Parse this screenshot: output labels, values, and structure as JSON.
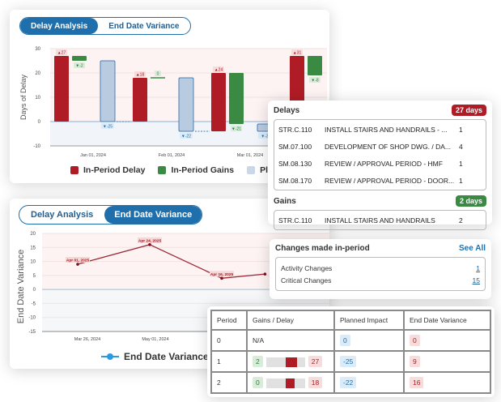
{
  "delay_card": {
    "toggle": {
      "options": [
        "Delay Analysis",
        "End Date Variance"
      ],
      "active": "Delay Analysis"
    },
    "chart_data": {
      "type": "bar",
      "subtype": "waterfall",
      "ylabel": "Days of Delay",
      "ylim": [
        -10,
        30
      ],
      "yticks": [
        "30",
        "20",
        "10",
        "0",
        "-10"
      ],
      "xticks": [
        "Jan 01, 2024",
        "Feb 01, 2024",
        "Mar 01, 2024"
      ],
      "periods": [
        {
          "delay": 27,
          "delay_label": "▲27",
          "gains": -2,
          "gains_label": "▼-2",
          "planned": -25,
          "planned_label": "▼-25",
          "end": 0
        },
        {
          "delay": 18,
          "delay_label": "▲18",
          "gains": 0,
          "gains_label": "0",
          "planned": -22,
          "planned_label": "▼-22",
          "end": -4
        },
        {
          "delay": 24,
          "delay_label": "▲24",
          "gains": -21,
          "gains_label": "▼-21",
          "planned": -3,
          "planned_label": "▼-3",
          "end": -4
        },
        {
          "delay": 31,
          "delay_label": "▲31",
          "gains": -8,
          "gains_label": "▼-8",
          "planned": -8,
          "planned_label": "",
          "end": 19
        }
      ],
      "legend": [
        "In-Period Delay",
        "In-Period Gains",
        "Planned Impact"
      ],
      "colors": {
        "delay": "#b01c26",
        "gains": "#3a8a44",
        "planned": "#b9cbe0",
        "planned_border": "#4a7fb5"
      }
    },
    "legend_labels": [
      "In-Period Delay",
      "In-Period Gains",
      "Planned I"
    ]
  },
  "details": {
    "delays": {
      "title": "Delays",
      "badge": "27 days",
      "rows": [
        {
          "code": "STR.C.110",
          "desc": "INSTALL STAIRS AND HANDRAILS - ...",
          "days": "1"
        },
        {
          "code": "SM.07.100",
          "desc": "DEVELOPMENT OF SHOP DWG. / DA...",
          "days": "4"
        },
        {
          "code": "SM.08.130",
          "desc": "REVIEW / APPROVAL PERIOD - HMF",
          "days": "1"
        },
        {
          "code": "SM.08.170",
          "desc": "REVIEW / APPROVAL PERIOD - DOOR...",
          "days": "1"
        }
      ]
    },
    "gains": {
      "title": "Gains",
      "badge": "2 days",
      "rows": [
        {
          "code": "STR.C.110",
          "desc": "INSTALL STAIRS AND HANDRAILS",
          "days": "2"
        }
      ]
    }
  },
  "edv_card": {
    "toggle": {
      "options": [
        "Delay Analysis",
        "End Date Variance"
      ],
      "active": "End Date Variance"
    },
    "chart_data": {
      "type": "line",
      "ylabel": "End Date Variance",
      "ylim": [
        -15,
        20
      ],
      "yticks": [
        "20",
        "15",
        "10",
        "5",
        "0",
        "-5",
        "-10",
        "-15"
      ],
      "xticks": [
        "Mar 26, 2024",
        "May 01, 2024"
      ],
      "points": [
        {
          "x": 0.0,
          "y": 9,
          "label": "Apr 01, 2025"
        },
        {
          "x": 1.0,
          "y": 16,
          "label": "Apr 24, 2025"
        },
        {
          "x": 2.0,
          "y": 4,
          "label": "Apr 16, 2025"
        },
        {
          "x": 2.6,
          "y": 5.5,
          "label": ""
        }
      ],
      "legend": [
        "End Date Variance"
      ],
      "line_color": "#9c2a36",
      "legend_color": "#2a9be0"
    }
  },
  "changes": {
    "title": "Changes made in-period",
    "see_all": "See All",
    "rows": [
      {
        "label": "Activity Changes",
        "value": "1"
      },
      {
        "label": "Critical Changes",
        "value": "15"
      }
    ]
  },
  "period_table": {
    "headers": [
      "Period",
      "Gains / Delay",
      "Planned Impact",
      "End Date Variance"
    ],
    "rows": [
      {
        "period": "0",
        "gains": "",
        "delay": "",
        "na": "N/A",
        "planned": "0",
        "edv": "0",
        "bar_from": 0,
        "bar_to": 0
      },
      {
        "period": "1",
        "gains": "2",
        "delay": "27",
        "na": "",
        "planned": "-25",
        "edv": "9",
        "bar_from": 0.5,
        "bar_to": 0.8
      },
      {
        "period": "2",
        "gains": "0",
        "delay": "18",
        "na": "",
        "planned": "-22",
        "edv": "16",
        "bar_from": 0.5,
        "bar_to": 0.73
      }
    ]
  }
}
